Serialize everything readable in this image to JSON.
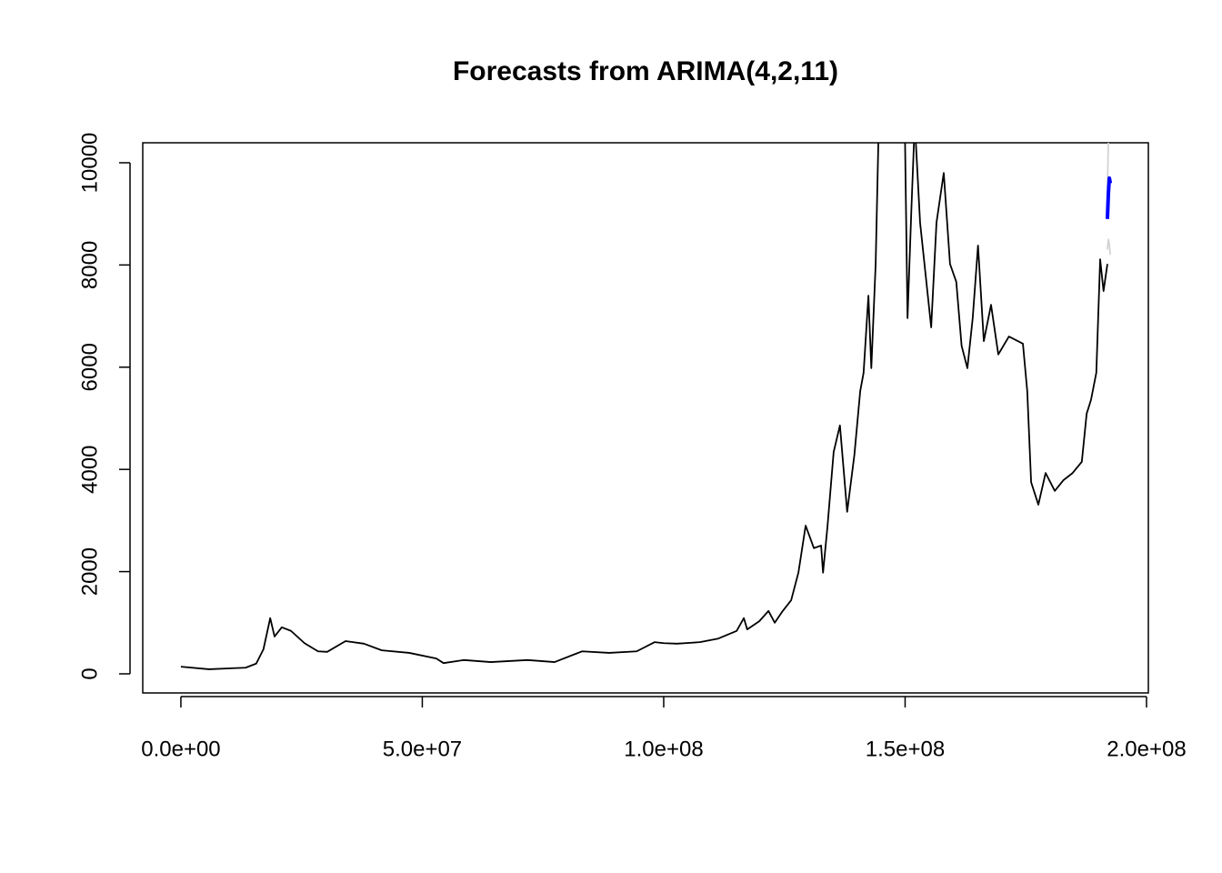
{
  "chart_data": {
    "type": "line",
    "title": "Forecasts from ARIMA(4,2,11)",
    "xlim": [
      -7900000,
      200380000
    ],
    "ylim": [
      -374,
      10391
    ],
    "xticks": [
      {
        "value": 0,
        "label": "0.0e+00"
      },
      {
        "value": 50000000,
        "label": "5.0e+07"
      },
      {
        "value": 100000000,
        "label": "1.0e+08"
      },
      {
        "value": 150000000,
        "label": "1.5e+08"
      },
      {
        "value": 200000000,
        "label": "2.0e+08"
      }
    ],
    "yticks": [
      0,
      2000,
      4000,
      6000,
      8000,
      10000
    ],
    "series": [
      {
        "color": "#000000",
        "x": [
          0,
          5800000,
          13400000,
          15600000,
          17100000,
          18500000,
          19400000,
          20900000,
          22800000,
          25600000,
          28400000,
          30300000,
          34100000,
          37900000,
          41600000,
          47300000,
          52900000,
          54400000,
          58600000,
          64200000,
          71800000,
          77400000,
          83100000,
          88700000,
          94400000,
          98100000,
          100000000,
          102800000,
          107500000,
          111300000,
          115100000,
          116600000,
          117300000,
          119800000,
          121700000,
          123000000,
          124500000,
          126400000,
          127900000,
          129400000,
          131100000,
          132600000,
          133000000,
          133900000,
          135200000,
          136500000,
          138000000,
          139500000,
          140700000,
          141400000,
          142400000,
          143000000,
          143900000,
          144600000,
          149900000,
          150500000,
          151300000,
          152000000,
          153100000,
          154200000,
          155400000,
          156500000,
          158000000,
          159300000,
          160600000,
          161700000,
          162900000,
          164000000,
          165100000,
          166300000,
          167800000,
          169300000,
          171500000,
          174400000,
          175300000,
          176100000,
          177600000,
          179100000,
          181000000,
          182800000,
          184700000,
          186600000,
          187600000,
          188500000,
          189600000,
          190400000,
          191100000,
          191900000
        ],
        "values": [
          140,
          90,
          120,
          200,
          480,
          1090,
          730,
          910,
          840,
          600,
          440,
          430,
          640,
          590,
          460,
          410,
          300,
          210,
          270,
          230,
          270,
          230,
          440,
          410,
          440,
          620,
          600,
          590,
          620,
          690,
          840,
          1090,
          870,
          1030,
          1230,
          1000,
          1210,
          1440,
          1980,
          2900,
          2460,
          2510,
          1980,
          2860,
          4340,
          4860,
          3170,
          4290,
          5530,
          5890,
          7400,
          5980,
          8020,
          11000,
          11000,
          6960,
          9090,
          10800,
          8830,
          7850,
          6780,
          8830,
          9800,
          8020,
          7670,
          6420,
          5980,
          6960,
          8380,
          6510,
          7220,
          6250,
          6600,
          6460,
          5530,
          3750,
          3310,
          3930,
          3580,
          3790,
          3930,
          4150,
          5090,
          5360,
          5890,
          8110,
          7490,
          8020
        ]
      },
      {
        "color": "#d3d3d3",
        "x": [
          191900000,
          192100000,
          192300000,
          192500000
        ],
        "values": [
          8300,
          8500,
          8400,
          8200
        ]
      },
      {
        "color": "#d3d3d3",
        "x": [
          191900000,
          192100000,
          192300000,
          192500000
        ],
        "values": [
          9500,
          10400,
          11000,
          11500
        ]
      },
      {
        "color": "#0000ff",
        "x": [
          191900000,
          192100000,
          192300000,
          192500000
        ],
        "values": [
          8900,
          9400,
          9700,
          9600
        ]
      }
    ]
  }
}
